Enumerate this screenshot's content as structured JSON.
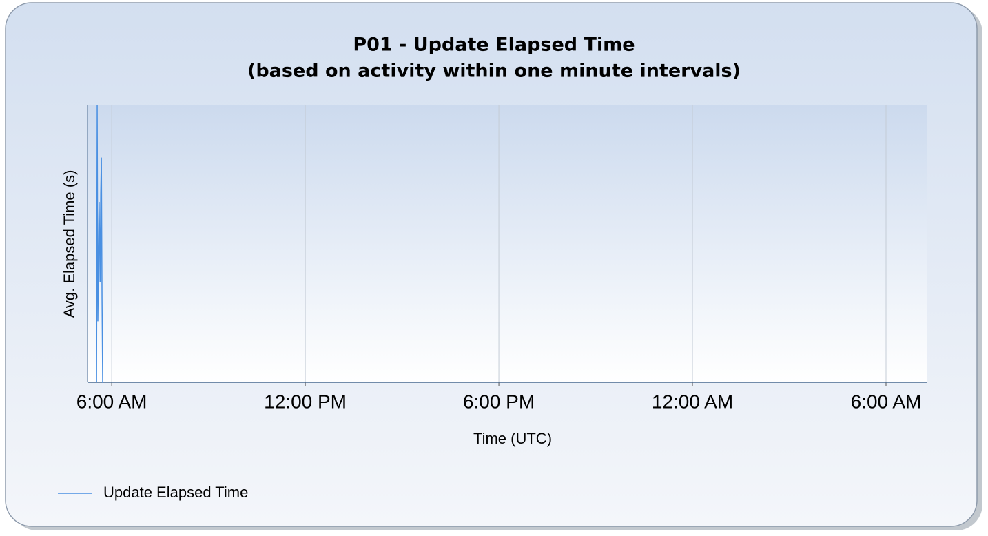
{
  "chart_data": {
    "type": "line",
    "title": "P01 - Update Elapsed Time",
    "subtitle": "(based on activity within one minute intervals)",
    "xlabel": "Time (UTC)",
    "ylabel": "Avg. Elapsed Time (s)",
    "x": [
      5.53,
      5.55,
      5.57,
      5.61,
      5.64,
      5.66,
      5.68,
      5.7,
      5.72,
      5.74
    ],
    "series": [
      {
        "name": "Update Elapsed Time",
        "color": "#4a90e2",
        "values": [
          0,
          1,
          0.22,
          0.65,
          0.36,
          0.68,
          0.81,
          0.3,
          0,
          0
        ]
      }
    ],
    "xlim": [
      5.25,
      31.26
    ],
    "xticks": [
      {
        "value": 6,
        "label": "6:00 AM"
      },
      {
        "value": 12,
        "label": "12:00 PM"
      },
      {
        "value": 18,
        "label": "6:00 PM"
      },
      {
        "value": 24,
        "label": "12:00 AM"
      },
      {
        "value": 30,
        "label": "6:00 AM"
      }
    ],
    "ylim": [
      0,
      1
    ],
    "grid": true,
    "legend": "bottom-left"
  }
}
